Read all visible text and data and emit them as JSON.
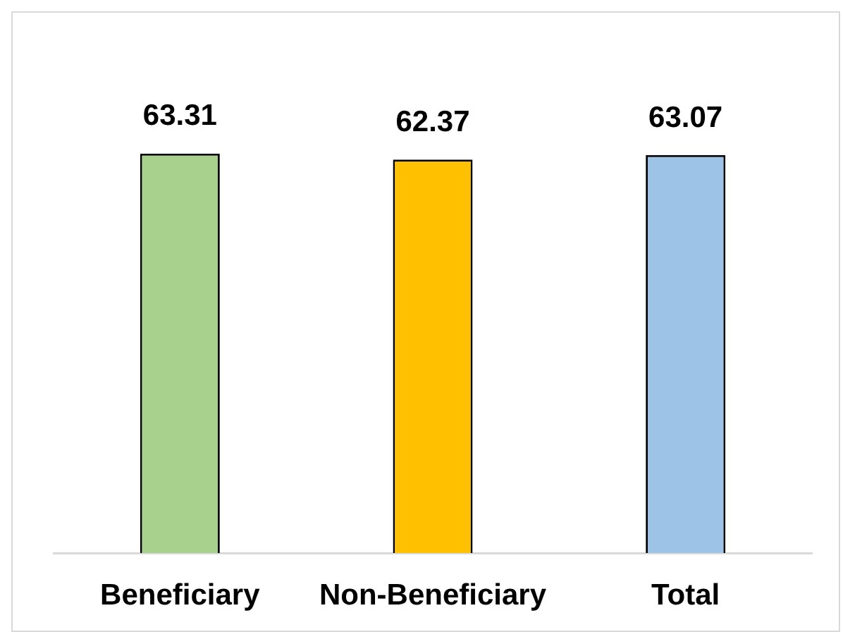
{
  "chart_data": {
    "type": "bar",
    "categories": [
      "Beneficiary",
      "Non-Beneficiary",
      "Total"
    ],
    "values": [
      63.31,
      62.37,
      63.07
    ],
    "colors": [
      "#a9d18e",
      "#ffc000",
      "#9dc3e6"
    ],
    "data_labels": true,
    "tick_labels": "x",
    "grid": false,
    "legend": false
  }
}
